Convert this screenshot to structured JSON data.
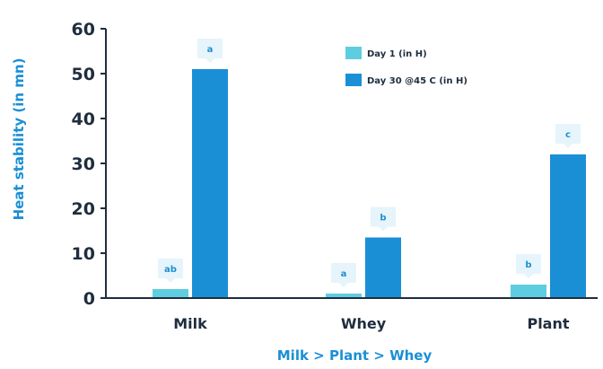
{
  "chart_data": {
    "type": "bar",
    "categories": [
      "Milk",
      "Whey",
      "Plant"
    ],
    "series": [
      {
        "name": "Day 1 (in H)",
        "color": "#5ecde0",
        "values": [
          2,
          1,
          3
        ],
        "labels": [
          "ab",
          "a",
          "b"
        ]
      },
      {
        "name": "Day 30 @45 C (in H)",
        "color": "#1a8fd6",
        "values": [
          51,
          13.5,
          32
        ],
        "labels": [
          "a",
          "b",
          "c"
        ]
      }
    ],
    "ylabel": "Heat stability (in mn)",
    "xlabel": "Milk > Plant > Whey",
    "ylim": [
      0,
      60
    ],
    "yticks": [
      0,
      10,
      20,
      30,
      40,
      50,
      60
    ],
    "grid": false,
    "legend_position": "top-right",
    "colors": {
      "axis": "#1f2d3d",
      "title": "#1a8fd6",
      "callout": "#e6f4fb"
    }
  }
}
